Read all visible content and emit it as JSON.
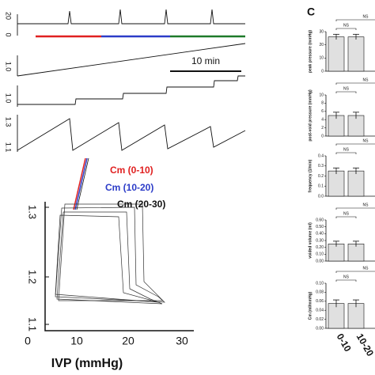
{
  "panel_a": {
    "trace1_ticks": [
      "20",
      "0"
    ],
    "trace2_ticks": [
      "1.0"
    ],
    "trace3_ticks": [
      "1.0"
    ],
    "trace4_ticks": [
      "1.3",
      "1.1"
    ],
    "scale_bar": "10 min"
  },
  "panel_b": {
    "legend": [
      "Cm (0-10)",
      "Cm (10-20)",
      "Cm (20-30)"
    ],
    "yticks": [
      "1.3",
      "1.2",
      "1.1"
    ],
    "xticks": [
      "0",
      "10",
      "20",
      "30"
    ],
    "xlabel": "IVP (mmHg)"
  },
  "panel_c": {
    "label": "C"
  },
  "chart_data": [
    {
      "type": "bar",
      "ylabel": "peak pressure (mmHg)",
      "categories": [
        "0-10",
        "10-20"
      ],
      "values": [
        26,
        26
      ],
      "errors": [
        2,
        2
      ],
      "ylim": [
        0,
        30
      ],
      "yticks": [
        0,
        10,
        20,
        30
      ],
      "ns": [
        "NS",
        "NS"
      ],
      "color": "#e0e0e0"
    },
    {
      "type": "bar",
      "ylabel": "post-void pressure (mmHg)",
      "categories": [
        "0-10",
        "10-20"
      ],
      "values": [
        5,
        5
      ],
      "errors": [
        0.8,
        0.8
      ],
      "ylim": [
        0,
        10
      ],
      "yticks": [
        0,
        2,
        4,
        6,
        8,
        10
      ],
      "ns": [
        "NS",
        "NS"
      ],
      "color": "#e0e0e0"
    },
    {
      "type": "bar",
      "ylabel": "frequency (1/min)",
      "categories": [
        "0-10",
        "10-20"
      ],
      "values": [
        0.25,
        0.25
      ],
      "errors": [
        0.03,
        0.03
      ],
      "ylim": [
        0,
        0.4
      ],
      "yticks": [
        {
          "value": 0,
          "label": "0.0"
        },
        0.1,
        0.2,
        0.3,
        0.4
      ],
      "ns": [
        "NS",
        "NS"
      ],
      "color": "#e0e0e0"
    },
    {
      "type": "bar",
      "ylabel": "voided volume (ml)",
      "categories": [
        "0-10",
        "10-20"
      ],
      "values": [
        0.25,
        0.25
      ],
      "errors": [
        0.04,
        0.04
      ],
      "ylim": [
        0,
        0.6
      ],
      "yticks": [
        {
          "value": 0,
          "label": "0.00"
        },
        {
          "value": 0.1,
          "label": "0.10"
        },
        {
          "value": 0.2,
          "label": "0.20"
        },
        {
          "value": 0.3,
          "label": "0.30"
        },
        {
          "value": 0.4,
          "label": "0.40"
        },
        {
          "value": 0.5,
          "label": "0.50"
        },
        {
          "value": 0.6,
          "label": "0.60"
        }
      ],
      "ns": [
        "NS",
        "NS"
      ],
      "color": "#e0e0e0"
    },
    {
      "type": "bar",
      "ylabel": "Cm (ml/mmHg)",
      "categories": [
        "0-10",
        "10-20"
      ],
      "values": [
        0.055,
        0.055
      ],
      "errors": [
        0.008,
        0.008
      ],
      "ylim": [
        0,
        0.1
      ],
      "yticks": [
        {
          "value": 0,
          "label": "0.00"
        },
        0.02,
        0.04,
        0.06,
        0.08,
        {
          "value": 0.1,
          "label": "0.10"
        }
      ],
      "ns": [
        "NS",
        "NS"
      ],
      "color": "#e0e0e0"
    }
  ]
}
